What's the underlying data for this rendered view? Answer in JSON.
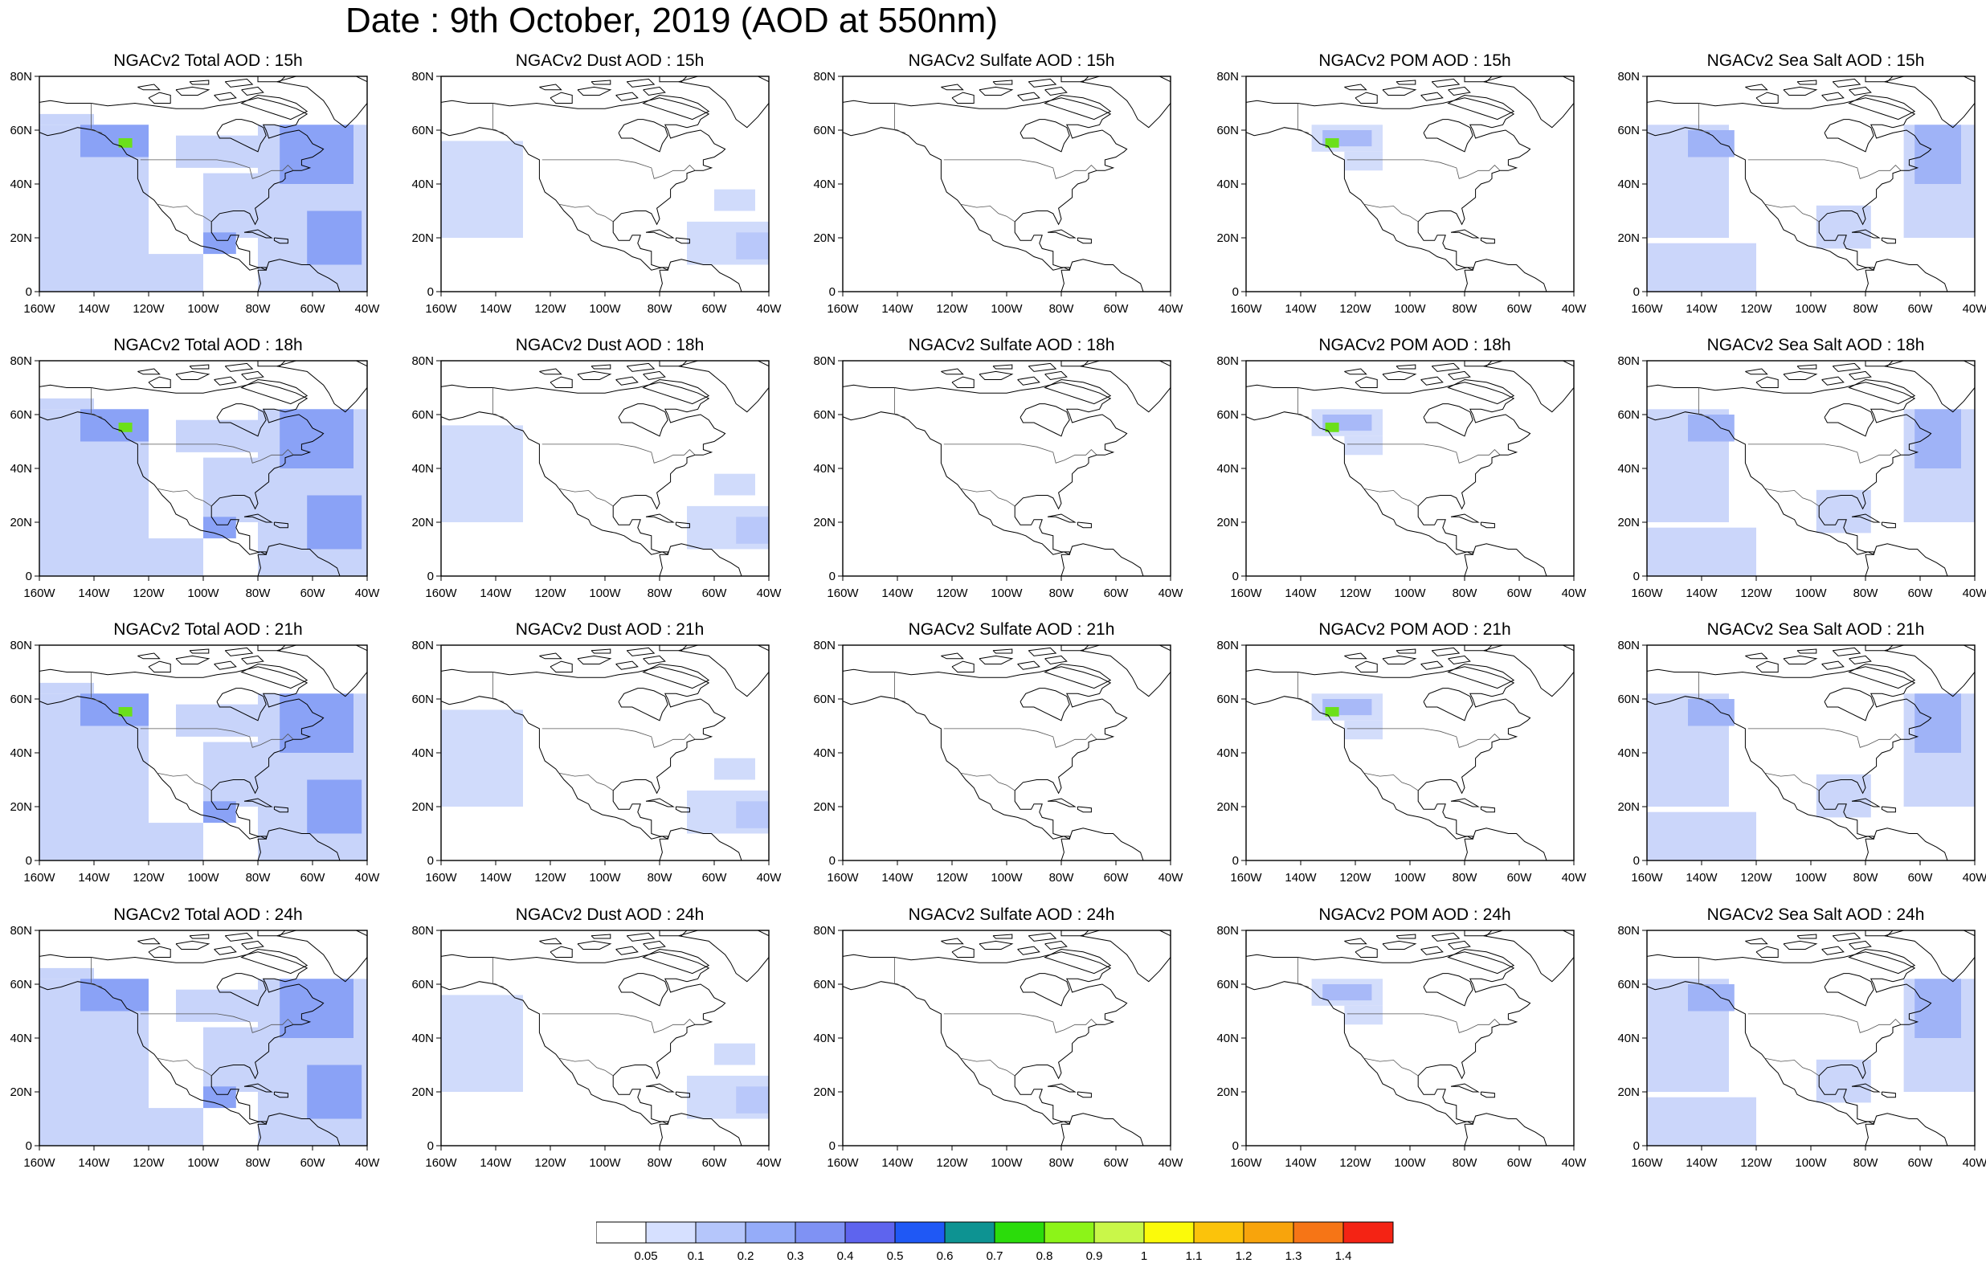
{
  "title": "Date : 9th October, 2019 (AOD at 550nm)",
  "lat_labels": [
    "80N",
    "60N",
    "40N",
    "20N",
    "0"
  ],
  "lon_labels": [
    "160W",
    "140W",
    "120W",
    "100W",
    "80W",
    "60W",
    "40W"
  ],
  "colorbar": {
    "labels": [
      "0.05",
      "0.1",
      "0.2",
      "0.3",
      "0.4",
      "0.5",
      "0.6",
      "0.7",
      "0.8",
      "0.9",
      "1",
      "1.1",
      "1.2",
      "1.3",
      "1.4"
    ],
    "colors": [
      "#ffffff",
      "#d6e0ff",
      "#b5c6fb",
      "#95acf9",
      "#7f92f4",
      "#5e64ee",
      "#1f58f5",
      "#0d9392",
      "#2bdc0b",
      "#8cf418",
      "#c9f749",
      "#fbfa0a",
      "#fbc30b",
      "#f8a40c",
      "#f67516",
      "#f42314"
    ]
  },
  "row_times": [
    "15h",
    "18h",
    "21h",
    "24h"
  ],
  "panels": [
    {
      "title": "NGACv2 Total AOD : 15h",
      "species": "total",
      "fill": "#c8d4fa",
      "strong": "#8aa2f6",
      "plume": "#6be01a"
    },
    {
      "title": "NGACv2 Dust AOD : 15h",
      "species": "dust",
      "fill": "#d0dbfb",
      "strong": "#b9c8fa",
      "plume": ""
    },
    {
      "title": "NGACv2 Sulfate AOD : 15h",
      "species": "sulfate",
      "fill": "",
      "strong": "",
      "plume": ""
    },
    {
      "title": "NGACv2 POM AOD : 15h",
      "species": "pom",
      "fill": "#d3ddfb",
      "strong": "#a8b9f8",
      "plume": "#6be01a"
    },
    {
      "title": "NGACv2 Sea Salt AOD : 15h",
      "species": "seasalt",
      "fill": "#cbd6fa",
      "strong": "#9fb3f7",
      "plume": ""
    },
    {
      "title": "NGACv2 Total AOD : 18h",
      "species": "total",
      "fill": "#c8d4fa",
      "strong": "#8aa2f6",
      "plume": "#6be01a"
    },
    {
      "title": "NGACv2 Dust AOD : 18h",
      "species": "dust",
      "fill": "#d0dbfb",
      "strong": "#b9c8fa",
      "plume": ""
    },
    {
      "title": "NGACv2 Sulfate AOD : 18h",
      "species": "sulfate",
      "fill": "",
      "strong": "",
      "plume": ""
    },
    {
      "title": "NGACv2 POM AOD : 18h",
      "species": "pom",
      "fill": "#d3ddfb",
      "strong": "#a8b9f8",
      "plume": "#6be01a"
    },
    {
      "title": "NGACv2 Sea Salt AOD : 18h",
      "species": "seasalt",
      "fill": "#cbd6fa",
      "strong": "#9fb3f7",
      "plume": ""
    },
    {
      "title": "NGACv2 Total AOD : 21h",
      "species": "total",
      "fill": "#c8d4fa",
      "strong": "#8aa2f6",
      "plume": "#6be01a"
    },
    {
      "title": "NGACv2 Dust AOD : 21h",
      "species": "dust",
      "fill": "#d0dbfb",
      "strong": "#b9c8fa",
      "plume": ""
    },
    {
      "title": "NGACv2 Sulfate AOD : 21h",
      "species": "sulfate",
      "fill": "",
      "strong": "",
      "plume": ""
    },
    {
      "title": "NGACv2 POM AOD : 21h",
      "species": "pom",
      "fill": "#d3ddfb",
      "strong": "#a8b9f8",
      "plume": "#6be01a"
    },
    {
      "title": "NGACv2 Sea Salt AOD : 21h",
      "species": "seasalt",
      "fill": "#cbd6fa",
      "strong": "#9fb3f7",
      "plume": ""
    },
    {
      "title": "NGACv2 Total AOD : 24h",
      "species": "total",
      "fill": "#c8d4fa",
      "strong": "#8aa2f6",
      "plume": ""
    },
    {
      "title": "NGACv2 Dust AOD : 24h",
      "species": "dust",
      "fill": "#d0dbfb",
      "strong": "#b9c8fa",
      "plume": ""
    },
    {
      "title": "NGACv2 Sulfate AOD : 24h",
      "species": "sulfate",
      "fill": "",
      "strong": "",
      "plume": ""
    },
    {
      "title": "NGACv2 POM AOD : 24h",
      "species": "pom",
      "fill": "#d3ddfb",
      "strong": "#a8b9f8",
      "plume": ""
    },
    {
      "title": "NGACv2 Sea Salt  AOD : 24h",
      "species": "seasalt",
      "fill": "#cbd6fa",
      "strong": "#9fb3f7",
      "plume": ""
    }
  ]
}
